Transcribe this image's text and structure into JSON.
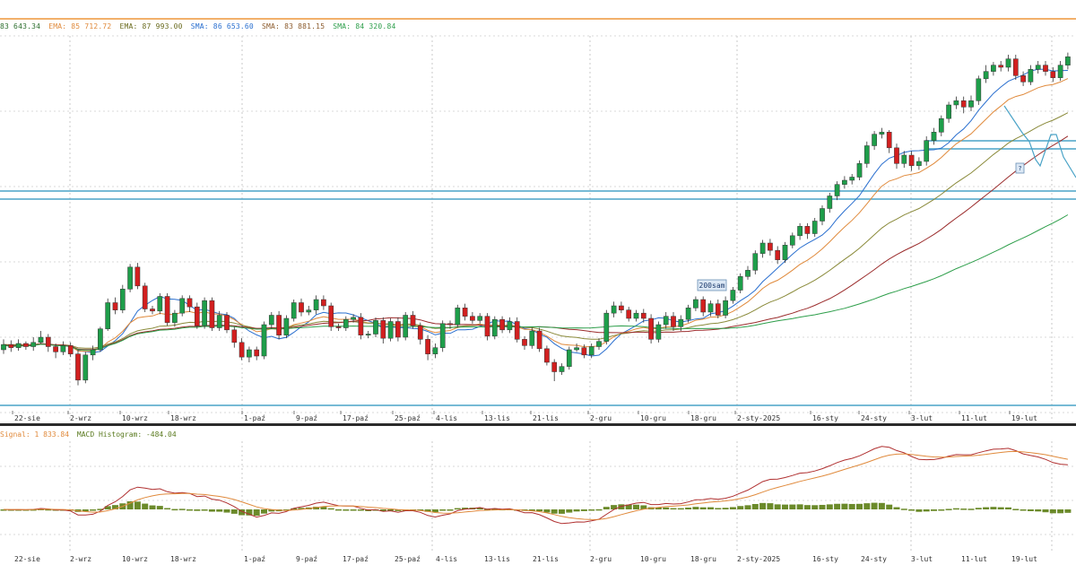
{
  "legend": {
    "items": [
      {
        "text": "83 643.34",
        "color": "#2d6e2d"
      },
      {
        "text": "EMA: 85 712.72",
        "color": "#e08a3c"
      },
      {
        "text": "EMA: 87 993.00",
        "color": "#6b6b1f"
      },
      {
        "text": "SMA: 86 653.60",
        "color": "#2a6fcf"
      },
      {
        "text": "SMA: 83 881.15",
        "color": "#8b5a2b"
      },
      {
        "text": "SMA: 84 320.84",
        "color": "#2d9e4a"
      }
    ]
  },
  "macd_legend": {
    "items": [
      {
        "text": "Signal: 1 833.84",
        "color": "#e08a3c"
      },
      {
        "text": "MACD Histogram: -484.04",
        "color": "#5a7a1f"
      }
    ]
  },
  "annotations": {
    "ma_label": "200sam",
    "marker": "?"
  },
  "x_axis": {
    "labels": [
      "22-sie",
      "2-wrz",
      "10-wrz",
      "18-wrz",
      "1-paź",
      "9-paź",
      "17-paź",
      "25-paź",
      "4-lis",
      "13-lis",
      "21-lis",
      "2-gru",
      "10-gru",
      "18-gru",
      "2-sty-2025",
      "16-sty",
      "24-sty",
      "3-lut",
      "11-lut",
      "19-lut"
    ]
  },
  "colors": {
    "up": "#1e9e4a",
    "down": "#d21f1f",
    "hline": "#4aa3c7",
    "grid": "#cfcfcf"
  },
  "chart_data": {
    "type": "candlestick",
    "candles": [
      [
        0,
        300,
        305,
        310,
        296
      ],
      [
        1,
        305,
        302,
        309,
        298
      ],
      [
        2,
        302,
        306,
        310,
        299
      ],
      [
        3,
        306,
        303,
        308,
        300
      ],
      [
        4,
        303,
        307,
        312,
        299
      ],
      [
        5,
        307,
        312,
        318,
        306
      ],
      [
        6,
        312,
        303,
        315,
        298
      ],
      [
        7,
        303,
        298,
        306,
        292
      ],
      [
        8,
        298,
        304,
        308,
        295
      ],
      [
        9,
        304,
        296,
        307,
        293
      ],
      [
        10,
        296,
        271,
        300,
        266
      ],
      [
        11,
        271,
        295,
        298,
        268
      ],
      [
        12,
        295,
        300,
        304,
        290
      ],
      [
        13,
        300,
        320,
        322,
        298
      ],
      [
        14,
        320,
        345,
        349,
        318
      ],
      [
        15,
        345,
        338,
        350,
        334
      ],
      [
        16,
        338,
        358,
        362,
        335
      ],
      [
        17,
        358,
        379,
        382,
        355
      ],
      [
        18,
        379,
        361,
        383,
        358
      ],
      [
        19,
        361,
        339,
        364,
        336
      ],
      [
        20,
        339,
        337,
        342,
        334
      ],
      [
        21,
        337,
        351,
        354,
        334
      ],
      [
        22,
        351,
        326,
        354,
        323
      ],
      [
        23,
        326,
        335,
        338,
        322
      ],
      [
        24,
        335,
        349,
        352,
        332
      ],
      [
        25,
        349,
        341,
        352,
        336
      ],
      [
        26,
        341,
        323,
        345,
        320
      ],
      [
        27,
        323,
        347,
        350,
        320
      ],
      [
        28,
        347,
        321,
        350,
        318
      ],
      [
        29,
        321,
        333,
        337,
        318
      ],
      [
        30,
        333,
        319,
        336,
        316
      ],
      [
        31,
        319,
        307,
        322,
        302
      ],
      [
        32,
        307,
        293,
        311,
        290
      ],
      [
        33,
        293,
        300,
        303,
        288
      ],
      [
        34,
        300,
        294,
        303,
        290
      ],
      [
        35,
        294,
        324,
        327,
        291
      ],
      [
        36,
        324,
        333,
        336,
        320
      ],
      [
        37,
        333,
        314,
        337,
        310
      ],
      [
        38,
        314,
        330,
        333,
        311
      ],
      [
        39,
        330,
        345,
        348,
        327
      ],
      [
        40,
        345,
        336,
        349,
        332
      ],
      [
        41,
        336,
        338,
        342,
        333
      ],
      [
        42,
        338,
        348,
        352,
        334
      ],
      [
        43,
        348,
        342,
        352,
        338
      ],
      [
        44,
        342,
        322,
        345,
        318
      ],
      [
        45,
        322,
        321,
        325,
        318
      ],
      [
        46,
        321,
        329,
        332,
        318
      ],
      [
        47,
        329,
        331,
        334,
        326
      ],
      [
        48,
        331,
        314,
        335,
        310
      ],
      [
        49,
        314,
        315,
        318,
        311
      ],
      [
        50,
        315,
        328,
        331,
        312
      ],
      [
        51,
        328,
        311,
        331,
        306
      ],
      [
        52,
        311,
        327,
        330,
        308
      ],
      [
        53,
        327,
        312,
        331,
        308
      ],
      [
        54,
        312,
        333,
        336,
        309
      ],
      [
        55,
        333,
        323,
        337,
        320
      ],
      [
        56,
        323,
        310,
        326,
        305
      ],
      [
        57,
        310,
        296,
        314,
        290
      ],
      [
        58,
        296,
        302,
        306,
        292
      ],
      [
        59,
        302,
        325,
        328,
        298
      ],
      [
        60,
        325,
        324,
        328,
        320
      ],
      [
        61,
        324,
        340,
        343,
        321
      ],
      [
        62,
        340,
        332,
        344,
        328
      ],
      [
        63,
        332,
        328,
        336,
        325
      ],
      [
        64,
        328,
        332,
        335,
        325
      ],
      [
        65,
        332,
        313,
        335,
        309
      ],
      [
        66,
        313,
        329,
        332,
        310
      ],
      [
        67,
        329,
        319,
        332,
        316
      ],
      [
        68,
        319,
        327,
        331,
        316
      ],
      [
        69,
        327,
        310,
        331,
        307
      ],
      [
        70,
        310,
        304,
        313,
        300
      ],
      [
        71,
        304,
        318,
        321,
        301
      ],
      [
        72,
        318,
        301,
        321,
        298
      ],
      [
        73,
        301,
        288,
        304,
        285
      ],
      [
        74,
        288,
        279,
        291,
        270
      ],
      [
        75,
        279,
        284,
        287,
        276
      ],
      [
        76,
        284,
        300,
        303,
        281
      ],
      [
        77,
        300,
        302,
        306,
        298
      ],
      [
        78,
        302,
        295,
        305,
        292
      ],
      [
        79,
        295,
        303,
        306,
        292
      ],
      [
        80,
        303,
        308,
        311,
        300
      ],
      [
        81,
        308,
        335,
        338,
        305
      ],
      [
        82,
        335,
        342,
        346,
        331
      ],
      [
        83,
        342,
        338,
        346,
        335
      ],
      [
        84,
        338,
        330,
        341,
        327
      ],
      [
        85,
        330,
        335,
        338,
        327
      ],
      [
        86,
        335,
        330,
        339,
        326
      ],
      [
        87,
        330,
        310,
        334,
        306
      ],
      [
        88,
        310,
        324,
        327,
        307
      ],
      [
        89,
        324,
        332,
        336,
        320
      ],
      [
        90,
        332,
        322,
        336,
        318
      ],
      [
        91,
        322,
        329,
        333,
        318
      ],
      [
        92,
        329,
        340,
        343,
        326
      ],
      [
        93,
        340,
        348,
        351,
        337
      ],
      [
        94,
        348,
        336,
        351,
        332
      ],
      [
        95,
        336,
        344,
        347,
        332
      ],
      [
        96,
        344,
        333,
        348,
        330
      ],
      [
        97,
        333,
        347,
        351,
        330
      ],
      [
        98,
        347,
        357,
        360,
        344
      ],
      [
        99,
        357,
        370,
        373,
        354
      ],
      [
        100,
        370,
        376,
        380,
        367
      ],
      [
        101,
        376,
        392,
        395,
        372
      ],
      [
        102,
        392,
        402,
        405,
        388
      ],
      [
        103,
        402,
        395,
        406,
        390
      ],
      [
        104,
        395,
        386,
        399,
        382
      ],
      [
        105,
        386,
        400,
        403,
        383
      ],
      [
        106,
        400,
        409,
        412,
        397
      ],
      [
        107,
        409,
        418,
        421,
        405
      ],
      [
        108,
        418,
        411,
        421,
        406
      ],
      [
        109,
        411,
        423,
        426,
        408
      ],
      [
        110,
        423,
        435,
        438,
        419
      ],
      [
        111,
        435,
        447,
        450,
        431
      ],
      [
        112,
        447,
        458,
        461,
        443
      ],
      [
        113,
        458,
        462,
        466,
        454
      ],
      [
        114,
        462,
        465,
        468,
        458
      ],
      [
        115,
        465,
        478,
        481,
        462
      ],
      [
        116,
        478,
        495,
        499,
        474
      ],
      [
        117,
        495,
        506,
        509,
        491
      ],
      [
        118,
        506,
        508,
        512,
        502
      ],
      [
        119,
        508,
        493,
        510,
        488
      ],
      [
        120,
        493,
        478,
        497,
        473
      ],
      [
        121,
        478,
        486,
        490,
        474
      ],
      [
        122,
        486,
        476,
        490,
        471
      ],
      [
        123,
        476,
        480,
        484,
        472
      ],
      [
        124,
        480,
        500,
        504,
        476
      ],
      [
        125,
        500,
        508,
        512,
        496
      ],
      [
        126,
        508,
        521,
        524,
        504
      ],
      [
        127,
        521,
        534,
        537,
        517
      ],
      [
        128,
        534,
        538,
        542,
        530
      ],
      [
        129,
        538,
        532,
        542,
        526
      ],
      [
        130,
        532,
        538,
        543,
        528
      ],
      [
        131,
        538,
        559,
        562,
        534
      ],
      [
        132,
        559,
        566,
        572,
        555
      ],
      [
        133,
        566,
        572,
        575,
        562
      ],
      [
        134,
        572,
        570,
        576,
        566
      ],
      [
        135,
        570,
        578,
        582,
        566
      ],
      [
        136,
        578,
        562,
        582,
        558
      ],
      [
        137,
        562,
        556,
        566,
        552
      ],
      [
        138,
        556,
        568,
        572,
        553
      ],
      [
        139,
        568,
        572,
        576,
        564
      ],
      [
        140,
        572,
        566,
        576,
        562
      ],
      [
        141,
        566,
        560,
        570,
        556
      ],
      [
        142,
        560,
        572,
        576,
        557
      ],
      [
        143,
        572,
        580,
        584,
        568
      ]
    ],
    "y_scale": "relative",
    "macd": {
      "signal": 1833.84,
      "histogram": -484.04
    }
  }
}
